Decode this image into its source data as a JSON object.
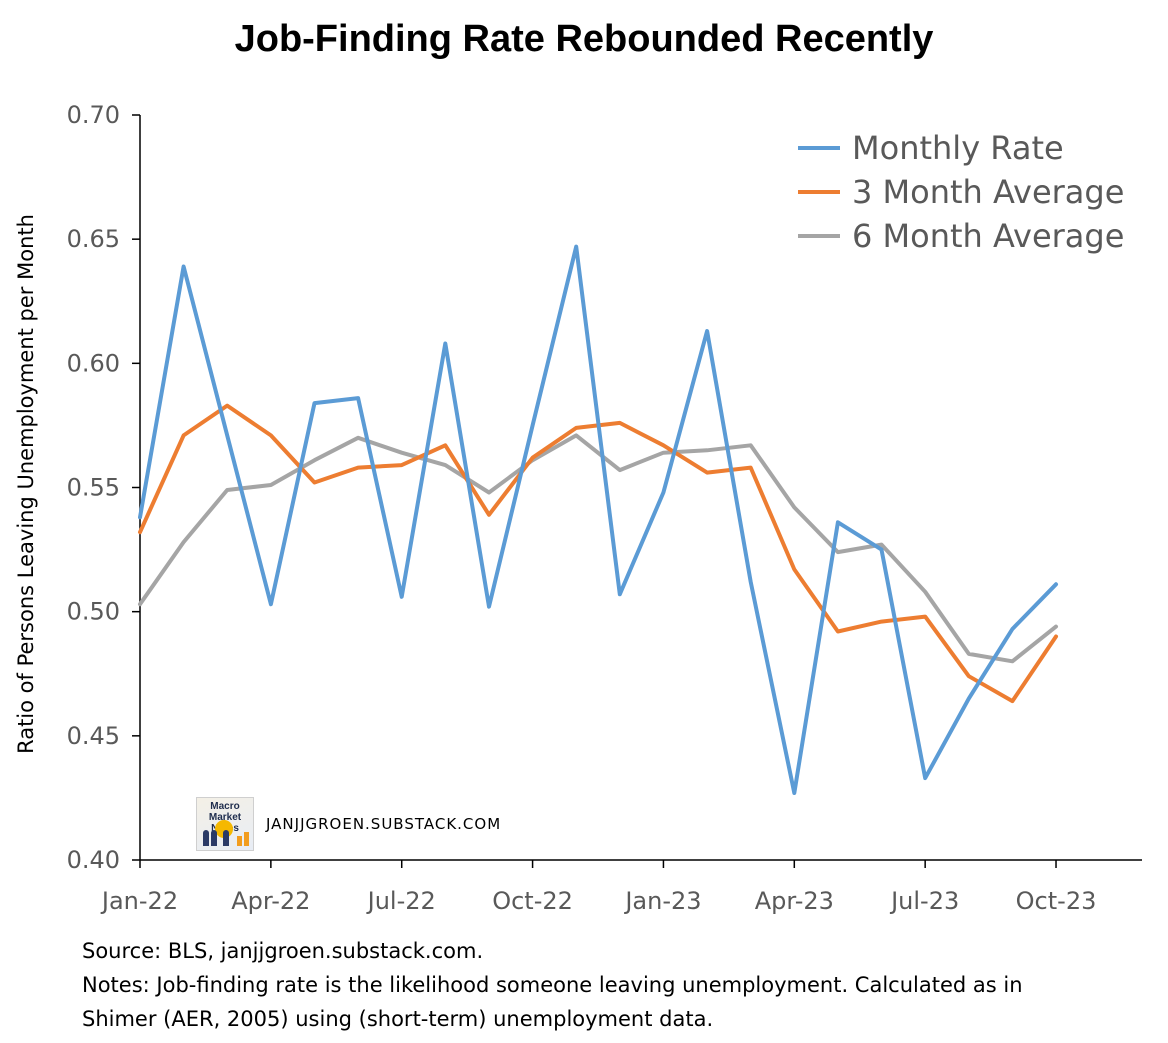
{
  "chart_data": {
    "type": "line",
    "title": "Job-Finding Rate Rebounded Recently",
    "ylabel": "Ratio of Persons Leaving Unemployment per Month",
    "xlabel": "",
    "ylim": [
      0.4,
      0.7
    ],
    "y_ticks": [
      "0.40",
      "0.45",
      "0.50",
      "0.55",
      "0.60",
      "0.65",
      "0.70"
    ],
    "x_ticks": [
      "Jan-22",
      "Apr-22",
      "Jul-22",
      "Oct-22",
      "Jan-23",
      "Apr-23",
      "Jul-23",
      "Oct-23"
    ],
    "x": [
      "Jan-22",
      "Feb-22",
      "Mar-22",
      "Apr-22",
      "May-22",
      "Jun-22",
      "Jul-22",
      "Aug-22",
      "Sep-22",
      "Oct-22",
      "Nov-22",
      "Dec-22",
      "Jan-23",
      "Feb-23",
      "Mar-23",
      "Apr-23",
      "May-23",
      "Jun-23",
      "Jul-23",
      "Aug-23",
      "Sep-23",
      "Oct-23"
    ],
    "grid": false,
    "legend_position": "top-right",
    "series": [
      {
        "name": "Monthly Rate",
        "color": "#5b9bd5",
        "values": [
          0.538,
          0.639,
          0.571,
          0.503,
          0.584,
          0.586,
          0.506,
          0.608,
          0.502,
          0.575,
          0.647,
          0.507,
          0.548,
          0.613,
          0.512,
          0.427,
          0.536,
          0.525,
          0.433,
          0.465,
          0.493,
          0.511
        ]
      },
      {
        "name": "3 Month Average",
        "color": "#ed7d31",
        "values": [
          0.532,
          0.571,
          0.583,
          0.571,
          0.552,
          0.558,
          0.559,
          0.567,
          0.539,
          0.562,
          0.574,
          0.576,
          0.567,
          0.556,
          0.558,
          0.517,
          0.492,
          0.496,
          0.498,
          0.474,
          0.464,
          0.49
        ]
      },
      {
        "name": "6 Month Average",
        "color": "#a5a5a5",
        "values": [
          0.503,
          0.528,
          0.549,
          0.551,
          0.561,
          0.57,
          0.564,
          0.559,
          0.548,
          0.561,
          0.571,
          0.557,
          0.564,
          0.565,
          0.567,
          0.542,
          0.524,
          0.527,
          0.508,
          0.483,
          0.48,
          0.494
        ]
      }
    ]
  },
  "watermark": {
    "logo_text": "Macro Market Notes",
    "text": "JANJJGROEN.SUBSTACK.COM"
  },
  "source": {
    "line1": "Source: BLS, janjjgroen.substack.com.",
    "line2": "Notes: Job-finding rate is the likelihood someone leaving unemployment. Calculated as in",
    "line3": "Shimer (AER, 2005) using (short-term) unemployment data."
  }
}
